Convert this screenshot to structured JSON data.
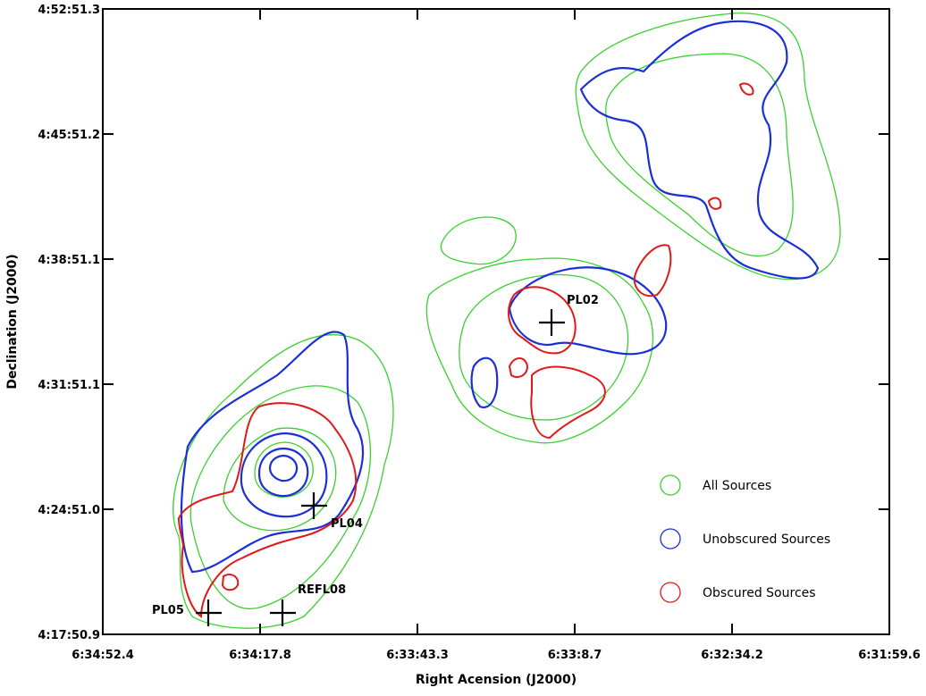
{
  "figure": {
    "x_axis": {
      "title": "Right Acension (J2000)",
      "ticks": [
        "6:34:52.4",
        "6:34:17.8",
        "6:33:43.3",
        "6:33:8.7",
        "6:32:34.2",
        "6:31:59.6"
      ]
    },
    "y_axis": {
      "title": "Declination (J2000)",
      "ticks": [
        "4:17:50.9",
        "4:24:51.0",
        "4:31:51.1",
        "4:38:51.1",
        "4:45:51.2",
        "4:52:51.3"
      ]
    },
    "legend": [
      "All Sources",
      "Unobscured Sources",
      "Obscured Sources"
    ],
    "sources": [
      "PL02",
      "PL04",
      "PL05",
      "REFL08"
    ]
  }
}
